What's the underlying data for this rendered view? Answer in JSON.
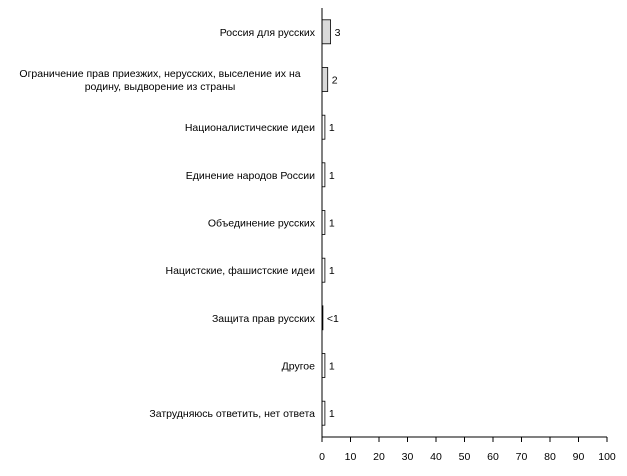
{
  "chart_data": {
    "type": "bar",
    "orientation": "horizontal",
    "categories": [
      [
        "Россия для русских"
      ],
      [
        "Ограничение прав приезжих, нерусских, выселение их на",
        "родину, выдворение из страны"
      ],
      [
        "Националистические идеи"
      ],
      [
        "Единение народов России"
      ],
      [
        "Объединение русских"
      ],
      [
        "Нацистские, фашистские идеи"
      ],
      [
        "Защита прав русских"
      ],
      [
        "Другое"
      ],
      [
        "Затрудняюсь ответить, нет ответа"
      ]
    ],
    "values": [
      3,
      2,
      1,
      1,
      1,
      1,
      0.3,
      1,
      1
    ],
    "value_labels": [
      "3",
      "2",
      "1",
      "1",
      "1",
      "1",
      "<1",
      "1",
      "1"
    ],
    "xlim": [
      0,
      100
    ],
    "xticks": [
      0,
      10,
      20,
      30,
      40,
      50,
      60,
      70,
      80,
      90,
      100
    ],
    "grid": false,
    "colors": {
      "top_bars": "#d9d9d9",
      "other_bars": "#ffffff",
      "stroke": "#000000"
    }
  }
}
